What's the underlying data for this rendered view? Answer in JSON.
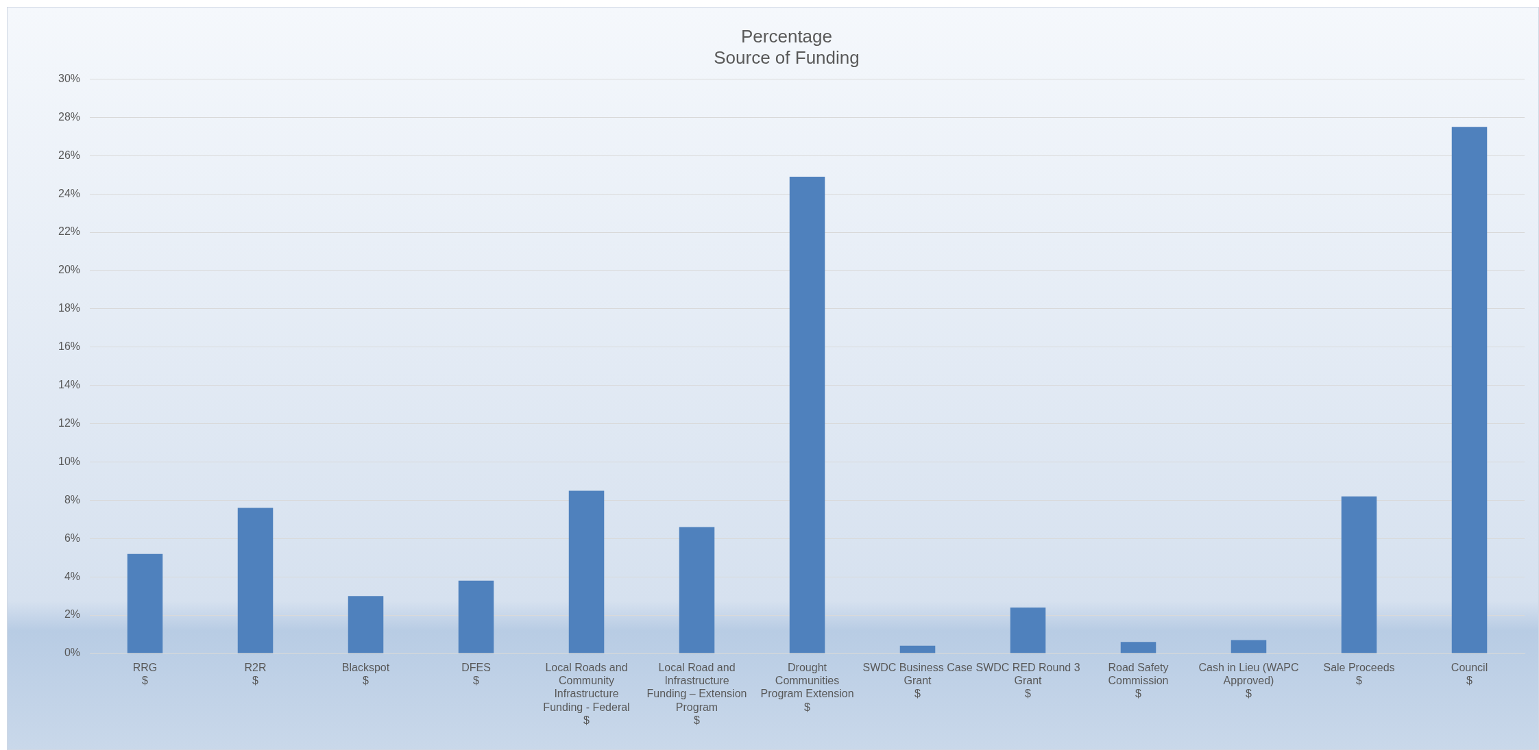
{
  "chart_data": {
    "type": "bar",
    "title": "Percentage",
    "subtitle": "Source of Funding",
    "categories": [
      "RRG\n$",
      "R2R\n$",
      "Blackspot\n$",
      "DFES\n$",
      "Local Roads and\nCommunity\nInfrastructure\nFunding - Federal\n$",
      "Local Road and\nInfrastructure\nFunding – Extension\nProgram\n$",
      "Drought\nCommunities\nProgram Extension\n$",
      "SWDC Business Case\nGrant\n$",
      "SWDC RED Round 3\nGrant\n$",
      "Road Safety\nCommission\n$",
      "Cash in Lieu (WAPC\nApproved)\n$",
      "Sale Proceeds\n$",
      "Council\n$"
    ],
    "values": [
      5.2,
      7.6,
      3.0,
      3.8,
      8.5,
      6.6,
      24.9,
      0.4,
      2.4,
      0.6,
      0.7,
      8.2,
      27.5
    ],
    "color": "#4f81bd",
    "ylim": [
      0,
      30
    ],
    "yticks": [
      {
        "value": 0,
        "label": "0%"
      },
      {
        "value": 2,
        "label": "2%"
      },
      {
        "value": 4,
        "label": "4%"
      },
      {
        "value": 6,
        "label": "6%"
      },
      {
        "value": 8,
        "label": "8%"
      },
      {
        "value": 10,
        "label": "10%"
      },
      {
        "value": 12,
        "label": "12%"
      },
      {
        "value": 14,
        "label": "14%"
      },
      {
        "value": 16,
        "label": "16%"
      },
      {
        "value": 18,
        "label": "18%"
      },
      {
        "value": 20,
        "label": "20%"
      },
      {
        "value": 22,
        "label": "22%"
      },
      {
        "value": 24,
        "label": "24%"
      },
      {
        "value": 26,
        "label": "26%"
      },
      {
        "value": 28,
        "label": "28%"
      },
      {
        "value": 30,
        "label": "30%"
      }
    ],
    "grid": "y",
    "legend": false
  }
}
